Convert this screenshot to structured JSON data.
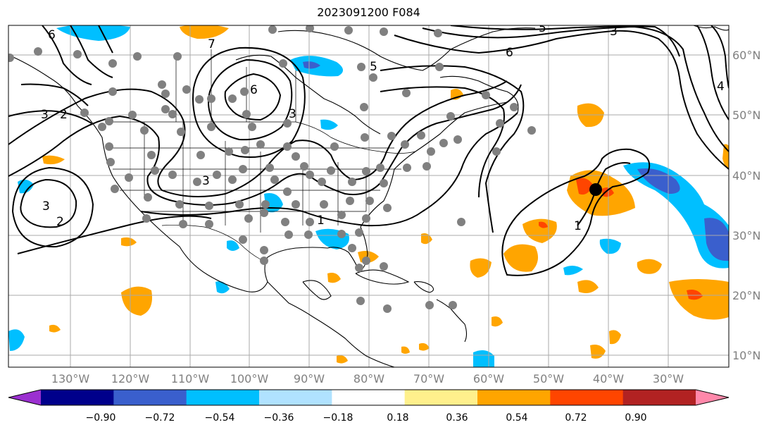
{
  "title": "2023091200 F084",
  "map": {
    "lon_labels": [
      "130°W",
      "120°W",
      "110°W",
      "100°W",
      "90°W",
      "80°W",
      "70°W",
      "60°W",
      "50°W",
      "40°W",
      "30°W"
    ],
    "lat_labels": [
      "60°N",
      "50°N",
      "40°N",
      "30°N",
      "20°N",
      "10°N"
    ],
    "contour_labels": [
      "6",
      "3",
      "2",
      "7",
      "6",
      "3",
      "5",
      "6",
      "3",
      "4",
      "5",
      "3",
      "3",
      "2",
      "1",
      "1"
    ],
    "marker": "storm-center"
  },
  "colorbar": {
    "tick_labels": [
      "−0.90",
      "−0.72",
      "−0.54",
      "−0.36",
      "−0.18",
      "0.18",
      "0.36",
      "0.54",
      "0.72",
      "0.90"
    ],
    "colors": [
      "#9b30d0",
      "#00008b",
      "#3a5fcd",
      "#00bfff",
      "#b0e2ff",
      "#ffffff",
      "#fff08c",
      "#ffa500",
      "#ff4500",
      "#b22222",
      "#ff88aa"
    ]
  }
}
